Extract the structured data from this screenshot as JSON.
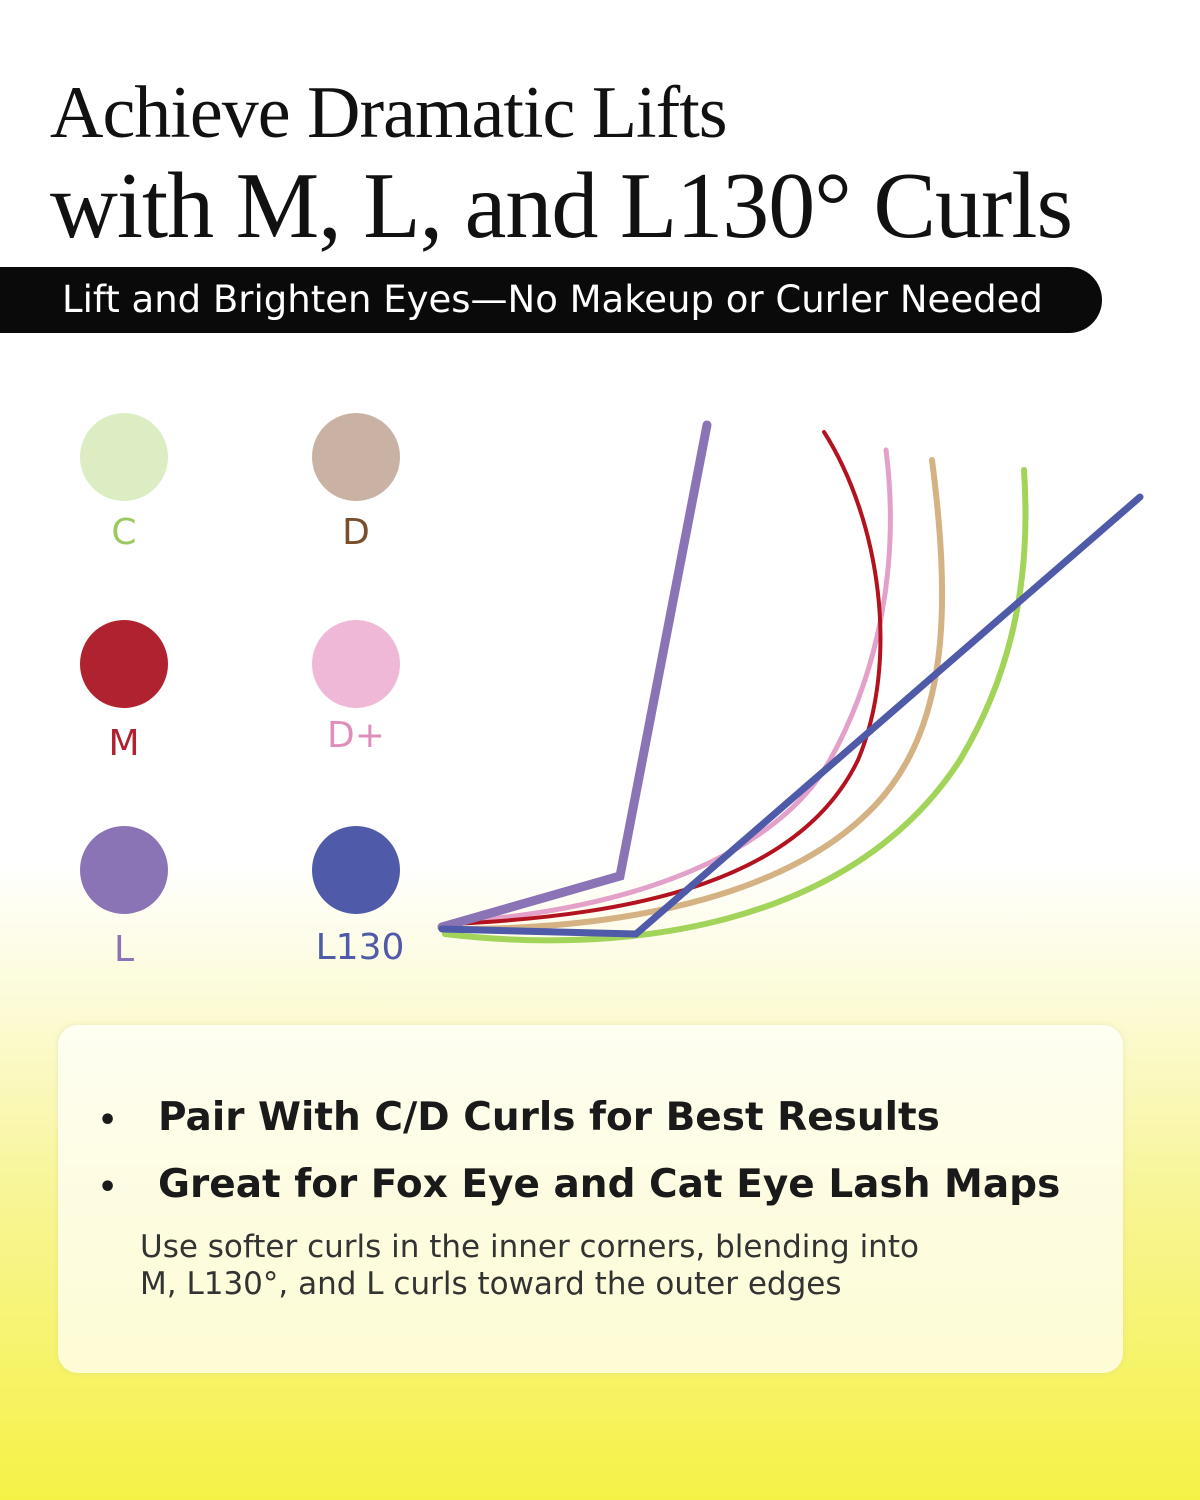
{
  "title": {
    "line1": "Achieve Dramatic Lifts",
    "line2": "with M, L, and L130° Curls"
  },
  "banner": "Lift and Brighten Eyes—No Makeup or Curler Needed",
  "curls": [
    {
      "label": "C",
      "dot": "#dcedc4",
      "text": "#9bc860",
      "line": "#a3d45a"
    },
    {
      "label": "D",
      "dot": "#c9b2a4",
      "text": "#7a4e2a",
      "line": "#d4b283"
    },
    {
      "label": "M",
      "dot": "#b0222f",
      "text": "#b0222f",
      "line": "#b3121f"
    },
    {
      "label": "D+",
      "dot": "#efb8d6",
      "text": "#e08dbc",
      "line": "#e3a0c8"
    },
    {
      "label": "L",
      "dot": "#8b74b6",
      "text": "#8b74b6",
      "line": "#8b74b6"
    },
    {
      "label": "L130",
      "dot": "#4f5ba9",
      "text": "#4f5ba9",
      "line": "#4f5ba9"
    }
  ],
  "card": {
    "bullets": [
      "Pair With C/D Curls for Best Results",
      "Great for Fox Eye and Cat Eye Lash Maps"
    ],
    "bullet_symbol": "•",
    "note_line1": "Use softer curls in the inner corners, blending into",
    "note_line2": "M, L130°, and L curls toward the outer edges"
  }
}
